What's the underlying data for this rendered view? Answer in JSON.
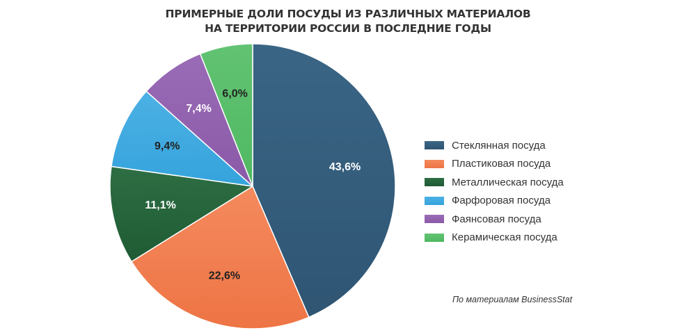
{
  "chart_data": {
    "type": "pie",
    "title": "ПРИМЕРНЫЕ ДОЛИ ПОСУДЫ ИЗ РАЗЛИЧНЫХ МАТЕРИАЛОВ НА ТЕРРИТОРИИ РОССИИ В ПОСЛЕДНИЕ ГОДЫ",
    "title_lines": [
      "ПРИМЕРНЫЕ ДОЛИ ПОСУДЫ ИЗ РАЗЛИЧНЫХ МАТЕРИАЛОВ",
      "НА ТЕРРИТОРИИ РОССИИ В ПОСЛЕДНИЕ ГОДЫ"
    ],
    "unit": "%",
    "legend_position": "right",
    "slices": [
      {
        "name": "Стеклянная посуда",
        "value": 43.6,
        "label": "43,6%",
        "color": "#2f5573",
        "color_light": "#3a6585",
        "label_color": "#ffffff"
      },
      {
        "name": "Пластиковая посуда",
        "value": 22.6,
        "label": "22,6%",
        "color": "#ee7444",
        "color_light": "#f48a5e",
        "label_color": "#222222"
      },
      {
        "name": "Металлическая посуда",
        "value": 11.1,
        "label": "11,1%",
        "color": "#1f5b34",
        "color_light": "#2e6e43",
        "label_color": "#ffffff"
      },
      {
        "name": "Фарфоровая посуда",
        "value": 9.4,
        "label": "9,4%",
        "color": "#35a3dc",
        "color_light": "#4cb1e4",
        "label_color": "#222222"
      },
      {
        "name": "Фаянсовая посуда",
        "value": 7.4,
        "label": "7,4%",
        "color": "#8a5aa8",
        "color_light": "#9a6bb6",
        "label_color": "#ffffff"
      },
      {
        "name": "Керамическая посуда",
        "value": 6.0,
        "label": "6,0%",
        "color": "#4fb862",
        "color_light": "#62c372",
        "label_color": "#222222"
      }
    ],
    "source": "По материалам BusinessStat"
  }
}
